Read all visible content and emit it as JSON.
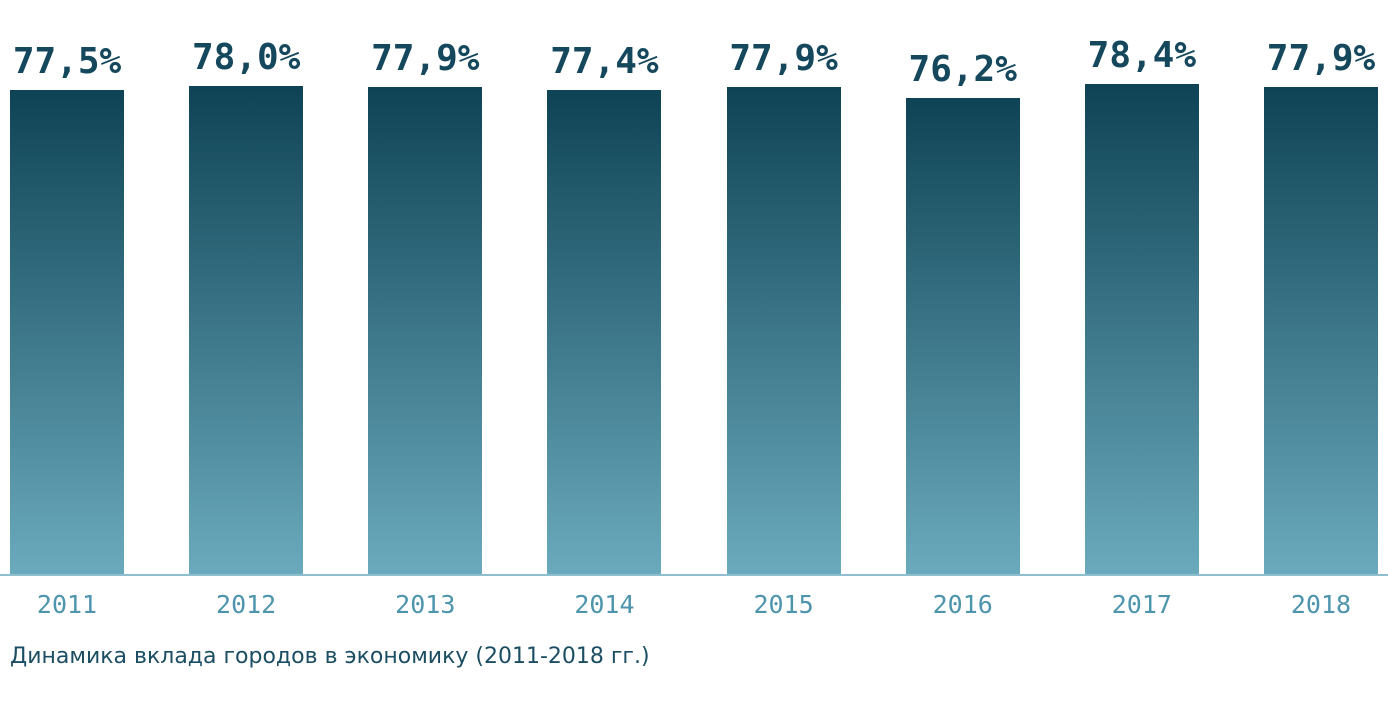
{
  "chart_data": {
    "type": "bar",
    "title": "Динамика вклада городов в экономику (2011-2018 гг.)",
    "xlabel": "",
    "ylabel": "",
    "categories": [
      "2011",
      "2012",
      "2013",
      "2014",
      "2015",
      "2016",
      "2017",
      "2018"
    ],
    "values": [
      77.5,
      78.0,
      77.9,
      77.4,
      77.9,
      76.2,
      78.4,
      77.9
    ],
    "value_labels": [
      "77,5%",
      "78,0%",
      "77,9%",
      "77,4%",
      "77,9%",
      "76,2%",
      "78,4%",
      "77,9%"
    ],
    "unit": "%",
    "grid": false,
    "legend": "none",
    "colors": {
      "bar_gradient_top": "#0e4355",
      "bar_gradient_bottom": "#6baabd",
      "value_label": "#15485c",
      "year_label": "#4d94ad",
      "caption": "#1c4e63",
      "baseline": "#8fbfce"
    }
  }
}
